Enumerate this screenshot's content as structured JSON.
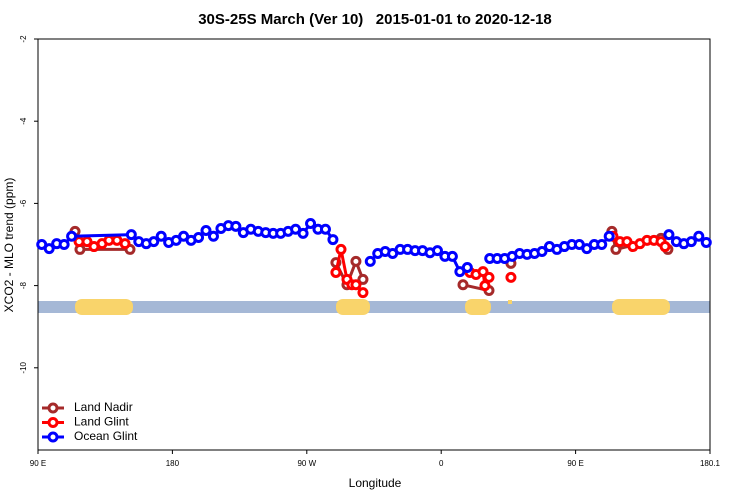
{
  "chart_data": {
    "type": "line",
    "title": "30S-25S March (Ver 10)   2015-01-01 to 2020-12-18",
    "x_label": "Longitude",
    "y_label": "XCO2 - MLO trend (ppm)",
    "xlim": [
      90,
      540
    ],
    "ylim": [
      -12,
      -2
    ],
    "xticks": [
      {
        "value": 90,
        "label": "90 E"
      },
      180,
      {
        "value": 270,
        "label": "90 W"
      },
      {
        "value": 360,
        "label": "0"
      },
      {
        "value": 450,
        "label": "90 E"
      },
      180.1
    ],
    "yticks": [
      -2,
      -4,
      -6,
      -8,
      -10
    ],
    "legend": "bottom-left",
    "series": [
      {
        "name": "Land Nadir",
        "color": "#a52a2a",
        "x": [
          114.8,
          118.1,
          151.6,
          null,
          289.5,
          296.9,
          302.9,
          307.6,
          null,
          374.6,
          392.0,
          null,
          406.7,
          null,
          474.3,
          477.0,
          507.2,
          511.8
        ],
        "values": [
          -6.68,
          -7.12,
          -7.12,
          null,
          -7.44,
          -7.98,
          -7.41,
          -7.85,
          null,
          -7.98,
          -8.12,
          null,
          -7.46,
          null,
          -6.68,
          -7.12,
          -6.85,
          -7.12
        ]
      },
      {
        "name": "Land Glint",
        "color": "#ff0000",
        "x": [
          117.5,
          122.8,
          127.5,
          132.9,
          137.5,
          142.9,
          148.3,
          null,
          289.5,
          292.9,
          296.9,
          300.2,
          302.9,
          307.6,
          null,
          379.3,
          383.3,
          388.0,
          389.3,
          392.0,
          null,
          406.7,
          null,
          475.0,
          479.7,
          484.4,
          488.4,
          493.1,
          497.8,
          502.5,
          507.2,
          509.9
        ],
        "values": [
          -6.93,
          -6.93,
          -7.05,
          -6.98,
          -6.9,
          -6.9,
          -6.98,
          null,
          -7.68,
          -7.12,
          -7.85,
          -7.98,
          -7.98,
          -8.17,
          null,
          -7.68,
          -7.73,
          -7.66,
          -8.0,
          -7.8,
          null,
          -7.8,
          null,
          -6.8,
          -6.93,
          -6.93,
          -7.05,
          -6.98,
          -6.9,
          -6.9,
          -6.93,
          -7.05
        ]
      },
      {
        "name": "Ocean Glint",
        "color": "#0000ff",
        "x": [
          92.5,
          97.5,
          102.5,
          107.5,
          112.5,
          152.5,
          157.5,
          162.5,
          167.5,
          172.5,
          177.5,
          182.5,
          187.5,
          192.5,
          197.5,
          202.5,
          207.5,
          212.5,
          217.5,
          222.5,
          227.5,
          232.5,
          237.5,
          242.5,
          247.5,
          252.5,
          257.5,
          262.5,
          267.5,
          272.5,
          277.5,
          282.5,
          287.5,
          null,
          312.5,
          317.5,
          322.5,
          327.5,
          332.5,
          337.5,
          342.5,
          347.5,
          352.5,
          357.5,
          362.5,
          367.5,
          372.5,
          377.5,
          null,
          392.5,
          397.5,
          402.5,
          407.5,
          412.5,
          417.5,
          422.5,
          427.5,
          432.5,
          437.5,
          442.5,
          447.5,
          452.5,
          457.5,
          462.5,
          467.5,
          472.5,
          null,
          512.5,
          517.5,
          522.5,
          527.5,
          532.5,
          537.5
        ],
        "values": [
          -7.0,
          -7.1,
          -6.98,
          -7.0,
          -6.8,
          -6.76,
          -6.93,
          -6.98,
          -6.93,
          -6.8,
          -6.95,
          -6.9,
          -6.8,
          -6.9,
          -6.83,
          -6.66,
          -6.8,
          -6.61,
          -6.54,
          -6.56,
          -6.71,
          -6.63,
          -6.68,
          -6.71,
          -6.73,
          -6.73,
          -6.68,
          -6.63,
          -6.73,
          -6.49,
          -6.63,
          -6.63,
          -6.88,
          null,
          -7.41,
          -7.22,
          -7.17,
          -7.22,
          -7.12,
          -7.12,
          -7.15,
          -7.15,
          -7.2,
          -7.15,
          -7.29,
          -7.29,
          -7.66,
          -7.56,
          null,
          -7.34,
          -7.34,
          -7.34,
          -7.29,
          -7.22,
          -7.24,
          -7.22,
          -7.17,
          -7.05,
          -7.12,
          -7.05,
          -7.0,
          -7.0,
          -7.1,
          -7.0,
          -7.0,
          -6.8,
          null,
          -6.76,
          -6.93,
          -6.98,
          -6.93,
          -6.8,
          -6.95
        ]
      }
    ]
  }
}
